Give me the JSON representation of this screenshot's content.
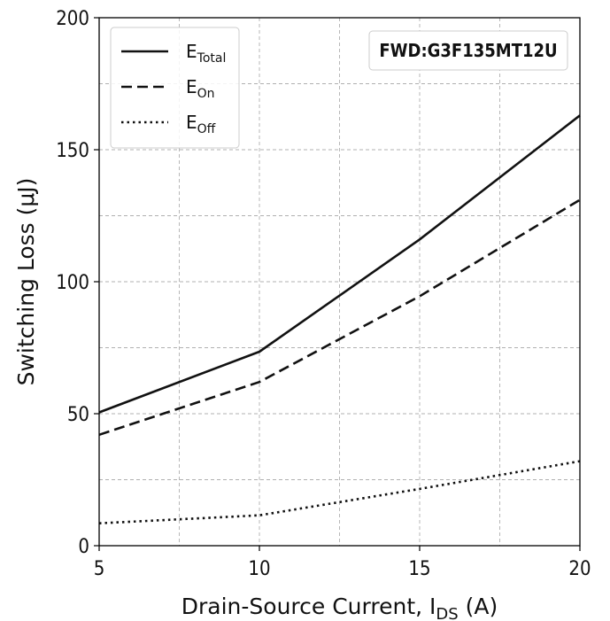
{
  "chart_data": {
    "type": "line",
    "xlabel": "Drain-Source Current, I",
    "xlabel_sub": "DS",
    "xlabel_suffix": " (A)",
    "ylabel": "Switching Loss (μJ)",
    "xlim": [
      5,
      20
    ],
    "ylim": [
      0,
      200
    ],
    "xticks": [
      5,
      10,
      15,
      20
    ],
    "yticks": [
      0,
      50,
      100,
      150,
      200
    ],
    "grid": true,
    "legend_position": "top-left",
    "annotation": "FWD:G3F135MT12U",
    "series": [
      {
        "name": "E",
        "name_sub": "Total",
        "style": "solid",
        "x": [
          5,
          10,
          15,
          20
        ],
        "y": [
          50.5,
          73.5,
          116,
          163
        ]
      },
      {
        "name": "E",
        "name_sub": "On",
        "style": "dashed",
        "x": [
          5,
          10,
          15,
          20
        ],
        "y": [
          42,
          62,
          94.5,
          131
        ]
      },
      {
        "name": "E",
        "name_sub": "Off",
        "style": "dotted",
        "x": [
          5,
          10,
          15,
          20
        ],
        "y": [
          8.5,
          11.5,
          21.5,
          32
        ]
      }
    ]
  }
}
